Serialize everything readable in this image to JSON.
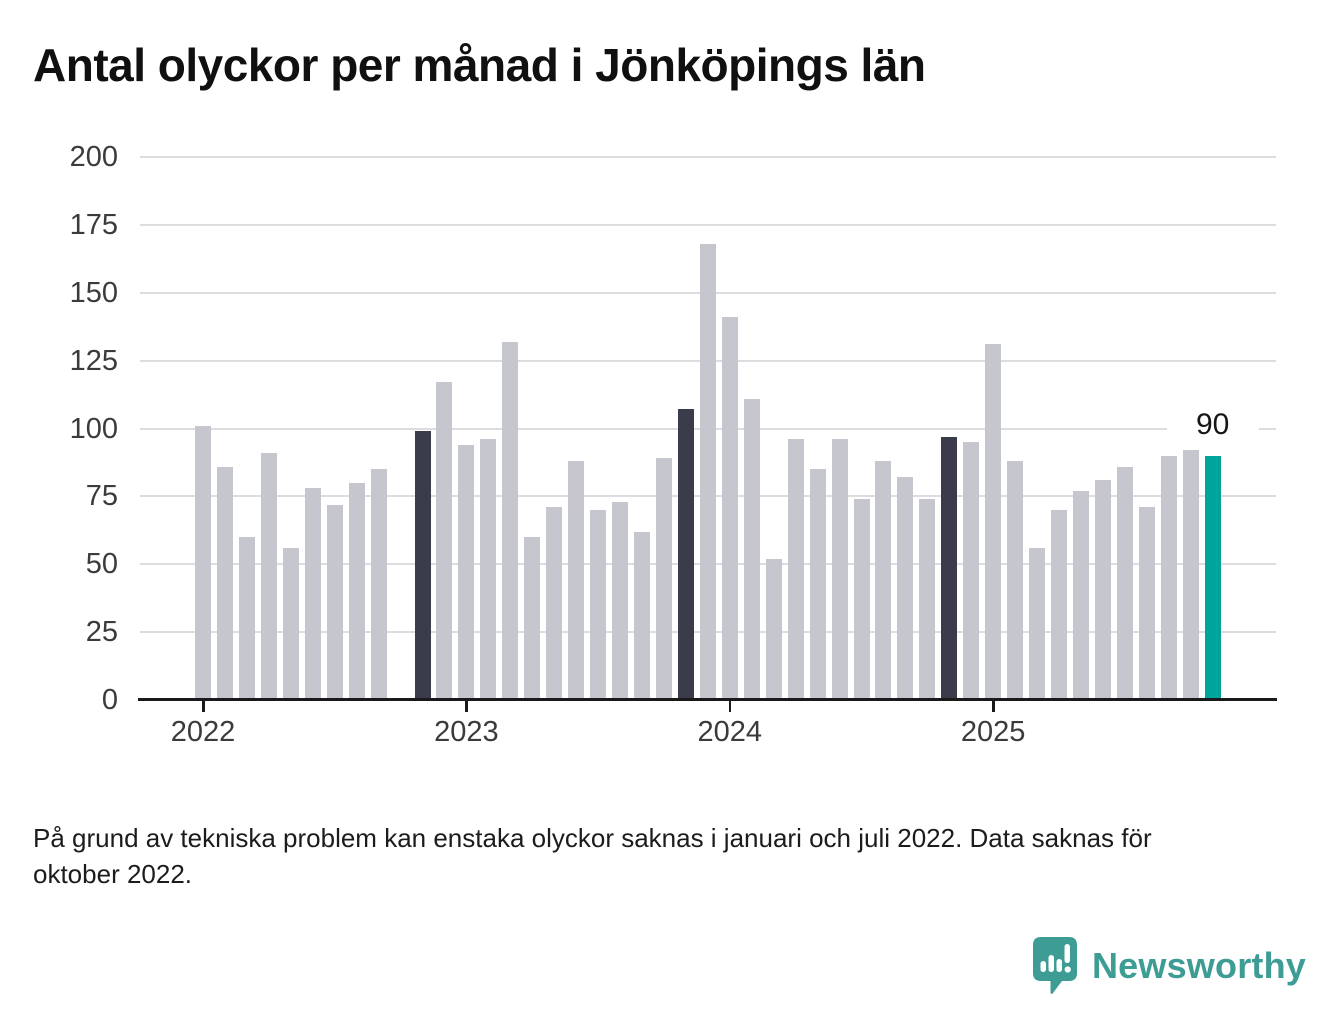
{
  "colors": {
    "background": "#ffffff",
    "bar_regular": "#c6c6ce",
    "bar_highlight_past": "#3a3c4c",
    "bar_highlight_current": "#00a49a",
    "gridline": "#dddde1",
    "axis_line": "#1a1a1a",
    "axis_label": "#3b3b3b",
    "title_text": "#101010",
    "logo_teal": "#3d9c93"
  },
  "chart_data": {
    "type": "bar",
    "title": "Antal olyckor per månad i Jönköpings län",
    "xlabel": "",
    "ylabel": "",
    "ylim": [
      0,
      200
    ],
    "grid": true,
    "y_ticks": [
      0,
      25,
      50,
      75,
      100,
      125,
      150,
      175,
      200
    ],
    "x_tick_labels": [
      "2022",
      "2023",
      "2024",
      "2025"
    ],
    "bars": [
      {
        "month": "2022-01",
        "value": 101,
        "role": "regular"
      },
      {
        "month": "2022-02",
        "value": 86,
        "role": "regular"
      },
      {
        "month": "2022-03",
        "value": 60,
        "role": "regular"
      },
      {
        "month": "2022-04",
        "value": 91,
        "role": "regular"
      },
      {
        "month": "2022-05",
        "value": 56,
        "role": "regular"
      },
      {
        "month": "2022-06",
        "value": 78,
        "role": "regular"
      },
      {
        "month": "2022-07",
        "value": 72,
        "role": "regular"
      },
      {
        "month": "2022-08",
        "value": 80,
        "role": "regular"
      },
      {
        "month": "2022-09",
        "value": 85,
        "role": "regular"
      },
      {
        "month": "2022-10",
        "value": null,
        "role": "missing"
      },
      {
        "month": "2022-11",
        "value": 99,
        "role": "highlight_past"
      },
      {
        "month": "2022-12",
        "value": 117,
        "role": "regular"
      },
      {
        "month": "2023-01",
        "value": 94,
        "role": "regular"
      },
      {
        "month": "2023-02",
        "value": 96,
        "role": "regular"
      },
      {
        "month": "2023-03",
        "value": 132,
        "role": "regular"
      },
      {
        "month": "2023-04",
        "value": 60,
        "role": "regular"
      },
      {
        "month": "2023-05",
        "value": 71,
        "role": "regular"
      },
      {
        "month": "2023-06",
        "value": 88,
        "role": "regular"
      },
      {
        "month": "2023-07",
        "value": 70,
        "role": "regular"
      },
      {
        "month": "2023-08",
        "value": 73,
        "role": "regular"
      },
      {
        "month": "2023-09",
        "value": 62,
        "role": "regular"
      },
      {
        "month": "2023-10",
        "value": 89,
        "role": "regular"
      },
      {
        "month": "2023-11",
        "value": 107,
        "role": "highlight_past"
      },
      {
        "month": "2023-12",
        "value": 168,
        "role": "regular"
      },
      {
        "month": "2024-01",
        "value": 141,
        "role": "regular"
      },
      {
        "month": "2024-02",
        "value": 111,
        "role": "regular"
      },
      {
        "month": "2024-03",
        "value": 52,
        "role": "regular"
      },
      {
        "month": "2024-04",
        "value": 96,
        "role": "regular"
      },
      {
        "month": "2024-05",
        "value": 85,
        "role": "regular"
      },
      {
        "month": "2024-06",
        "value": 96,
        "role": "regular"
      },
      {
        "month": "2024-07",
        "value": 74,
        "role": "regular"
      },
      {
        "month": "2024-08",
        "value": 88,
        "role": "regular"
      },
      {
        "month": "2024-09",
        "value": 82,
        "role": "regular"
      },
      {
        "month": "2024-10",
        "value": 74,
        "role": "regular"
      },
      {
        "month": "2024-11",
        "value": 97,
        "role": "highlight_past"
      },
      {
        "month": "2024-12",
        "value": 95,
        "role": "regular"
      },
      {
        "month": "2025-01",
        "value": 131,
        "role": "regular"
      },
      {
        "month": "2025-02",
        "value": 88,
        "role": "regular"
      },
      {
        "month": "2025-03",
        "value": 56,
        "role": "regular"
      },
      {
        "month": "2025-04",
        "value": 70,
        "role": "regular"
      },
      {
        "month": "2025-05",
        "value": 77,
        "role": "regular"
      },
      {
        "month": "2025-06",
        "value": 81,
        "role": "regular"
      },
      {
        "month": "2025-07",
        "value": 86,
        "role": "regular"
      },
      {
        "month": "2025-08",
        "value": 71,
        "role": "regular"
      },
      {
        "month": "2025-09",
        "value": 90,
        "role": "regular"
      },
      {
        "month": "2025-10",
        "value": 92,
        "role": "regular"
      },
      {
        "month": "2025-11",
        "value": 90,
        "role": "highlight_current",
        "label": "90"
      }
    ]
  },
  "footnote": {
    "lines": [
      "På grund av tekniska problem kan enstaka olyckor saknas i januari och juli 2022. Data saknas för",
      "oktober 2022."
    ]
  },
  "attribution": {
    "brand": "Newsworthy"
  }
}
